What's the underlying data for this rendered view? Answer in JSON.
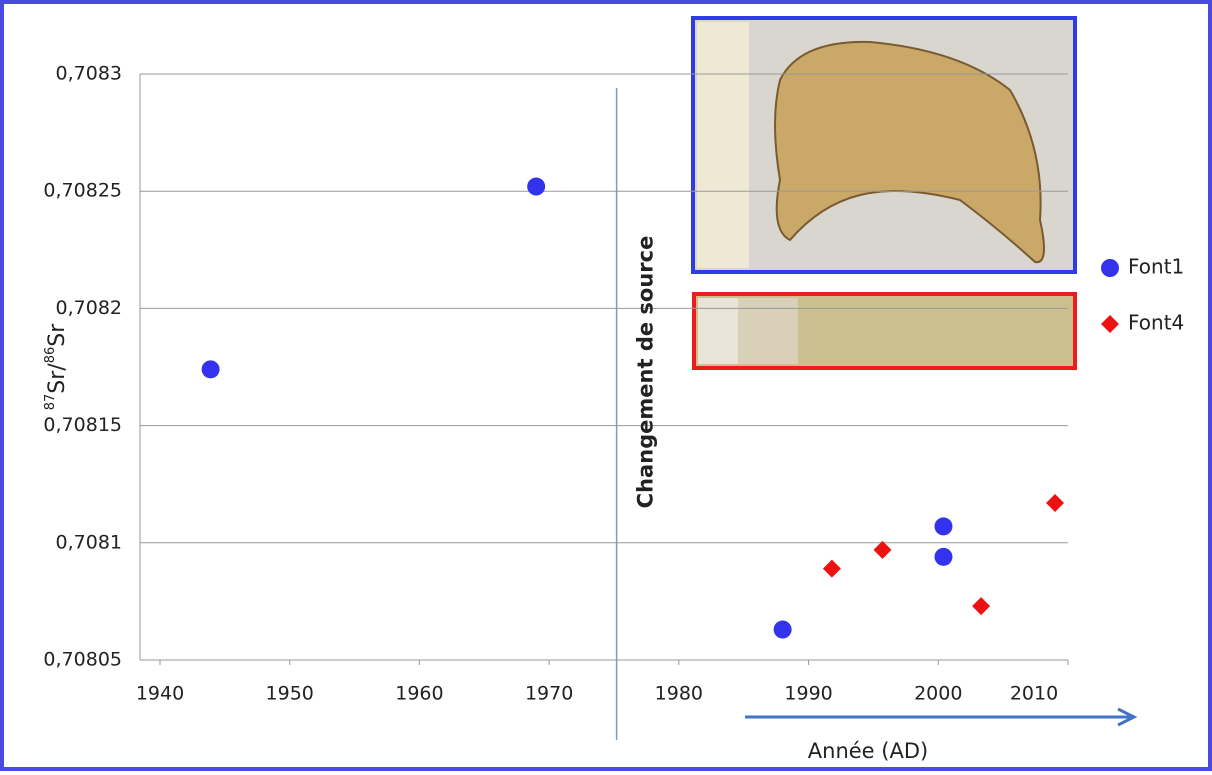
{
  "chart_data": {
    "type": "scatter",
    "ylabel_parts": [
      "87",
      "Sr/",
      "86",
      "Sr"
    ],
    "xlabel": "Année (AD)",
    "xlim": [
      1940,
      2010
    ],
    "xticks": [
      1940,
      1950,
      1960,
      1970,
      1980,
      1990,
      2000,
      2010
    ],
    "ylim": [
      0.70805,
      0.7083
    ],
    "yticks": [
      {
        "value": 0.70805,
        "label": "0,70805"
      },
      {
        "value": 0.7081,
        "label": "0,7081"
      },
      {
        "value": 0.70815,
        "label": "0,70815"
      },
      {
        "value": 0.7082,
        "label": "0,7082"
      },
      {
        "value": 0.70825,
        "label": "0,70825"
      },
      {
        "value": 0.7083,
        "label": "0,7083"
      }
    ],
    "grid": true,
    "annotations": [
      {
        "text": "Changement de source",
        "x": 1975.2
      }
    ],
    "series": [
      {
        "name": "Font1",
        "color": "#3333ee",
        "marker": "circle",
        "x": [
          1943.9,
          1969.0,
          1988.0,
          2000.4,
          2000.4
        ],
        "values": [
          0.708174,
          0.708252,
          0.708063,
          0.708107,
          0.708094
        ]
      },
      {
        "name": "Font4",
        "color": "#ee1111",
        "marker": "diamond",
        "x": [
          1991.8,
          1995.7,
          2003.3,
          2009.0
        ],
        "values": [
          0.708089,
          0.708097,
          0.708073,
          0.708117
        ]
      }
    ]
  }
}
